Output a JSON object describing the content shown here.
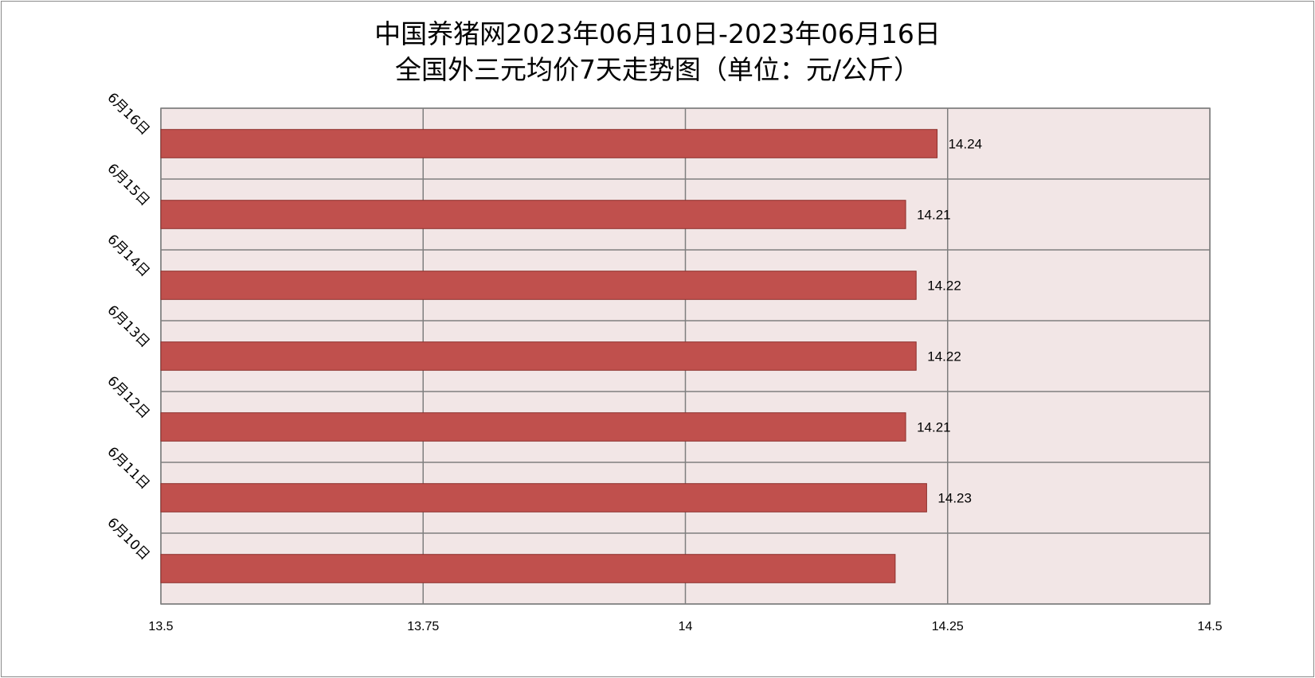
{
  "chart_data": {
    "type": "bar",
    "orientation": "horizontal",
    "title_line1": "中国养猪网2023年06月10日-2023年06月16日",
    "title_line2": "全国外三元均价7天走势图（单位：元/公斤）",
    "categories": [
      "6月10日",
      "6月11日",
      "6月12日",
      "6月13日",
      "6月14日",
      "6月15日",
      "6月16日"
    ],
    "values": [
      14.2,
      14.23,
      14.21,
      14.22,
      14.22,
      14.21,
      14.24
    ],
    "data_labels": [
      "",
      "14.23",
      "14.21",
      "14.22",
      "14.22",
      "14.21",
      "14.24"
    ],
    "xlim": [
      13.5,
      14.5
    ],
    "xticks": [
      "13.5",
      "13.75",
      "14",
      "14.25",
      "14.5"
    ],
    "xtick_values": [
      13.5,
      13.75,
      14,
      14.25,
      14.5
    ],
    "grid": true,
    "legend": "none",
    "colors": {
      "bar": "#c0504d",
      "bar_edge": "#8c2f2c",
      "plot_bg": "#f2e6e6",
      "grid": "#7f7f7f"
    }
  }
}
